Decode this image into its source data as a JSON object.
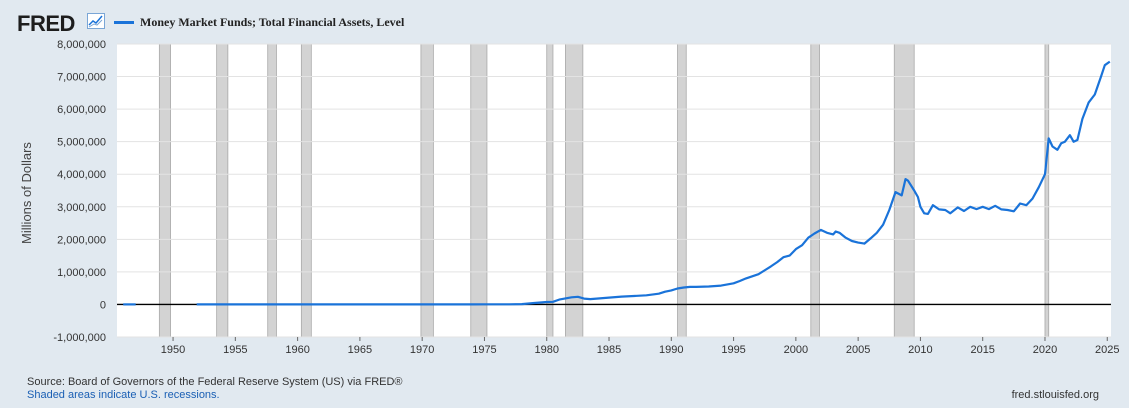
{
  "header": {
    "logo_text": "FRED",
    "logo_icon": "line-chart-icon"
  },
  "colors": {
    "series": "#1a73d9",
    "recession": "#d3d3d3",
    "plot_bg": "#ffffff",
    "page_bg": "#e1e9f0"
  },
  "chart_data": {
    "type": "line",
    "title": "Money Market Funds; Total Financial Assets, Level",
    "xlabel": "",
    "ylabel": "Millions of Dollars",
    "xlim": [
      1945.5,
      2025.3
    ],
    "ylim": [
      -1000000,
      8000000
    ],
    "y_ticks": [
      -1000000,
      0,
      1000000,
      2000000,
      3000000,
      4000000,
      5000000,
      6000000,
      7000000,
      8000000
    ],
    "y_tick_labels": [
      "-1,000,000",
      "0",
      "1,000,000",
      "2,000,000",
      "3,000,000",
      "4,000,000",
      "5,000,000",
      "6,000,000",
      "7,000,000",
      "8,000,000"
    ],
    "x_ticks": [
      1950,
      1955,
      1960,
      1965,
      1970,
      1975,
      1980,
      1985,
      1990,
      1995,
      2000,
      2005,
      2010,
      2015,
      2020,
      2025
    ],
    "x_tick_labels": [
      "1950",
      "1955",
      "1960",
      "1965",
      "1970",
      "1975",
      "1980",
      "1985",
      "1990",
      "1995",
      "2000",
      "2005",
      "2010",
      "2015",
      "2020",
      "2025"
    ],
    "grid": true,
    "recessions": [
      [
        1948.9,
        1949.8
      ],
      [
        1953.5,
        1954.4
      ],
      [
        1957.6,
        1958.3
      ],
      [
        1960.3,
        1961.1
      ],
      [
        1969.9,
        1970.9
      ],
      [
        1973.9,
        1975.2
      ],
      [
        1980.0,
        1980.5
      ],
      [
        1981.5,
        1982.9
      ],
      [
        1990.5,
        1991.2
      ],
      [
        2001.2,
        2001.9
      ],
      [
        2007.9,
        2009.5
      ],
      [
        2020.0,
        2020.3
      ]
    ],
    "series": [
      {
        "name": "Money Market Funds; Total Financial Assets, Level",
        "segments": [
          [
            [
              1946.0,
              0
            ],
            [
              1947.0,
              0
            ]
          ],
          [
            [
              1951.9,
              0
            ],
            [
              1960,
              0
            ],
            [
              1970,
              0
            ],
            [
              1974,
              2000
            ],
            [
              1975,
              3500
            ],
            [
              1976,
              3700
            ],
            [
              1977,
              3900
            ],
            [
              1978,
              11000
            ],
            [
              1979,
              45000
            ],
            [
              1980,
              76000
            ],
            [
              1980.5,
              80000
            ],
            [
              1981,
              150000
            ],
            [
              1981.5,
              185000
            ],
            [
              1982,
              220000
            ],
            [
              1982.5,
              235000
            ],
            [
              1983,
              180000
            ],
            [
              1983.5,
              165000
            ],
            [
              1984,
              180000
            ],
            [
              1985,
              210000
            ],
            [
              1986,
              240000
            ],
            [
              1987,
              260000
            ],
            [
              1988,
              280000
            ],
            [
              1989,
              330000
            ],
            [
              1989.5,
              390000
            ],
            [
              1990,
              430000
            ],
            [
              1990.5,
              490000
            ],
            [
              1991,
              520000
            ],
            [
              1991.5,
              540000
            ],
            [
              1992,
              540000
            ],
            [
              1993,
              550000
            ],
            [
              1994,
              580000
            ],
            [
              1995,
              650000
            ],
            [
              1995.5,
              720000
            ],
            [
              1996,
              800000
            ],
            [
              1997,
              930000
            ],
            [
              1998,
              1170000
            ],
            [
              1998.5,
              1300000
            ],
            [
              1999,
              1450000
            ],
            [
              1999.5,
              1500000
            ],
            [
              2000,
              1700000
            ],
            [
              2000.5,
              1820000
            ],
            [
              2001,
              2050000
            ],
            [
              2001.5,
              2180000
            ],
            [
              2002,
              2290000
            ],
            [
              2002.5,
              2200000
            ],
            [
              2003,
              2150000
            ],
            [
              2003.2,
              2240000
            ],
            [
              2003.5,
              2200000
            ],
            [
              2004,
              2050000
            ],
            [
              2004.5,
              1950000
            ],
            [
              2005,
              1900000
            ],
            [
              2005.5,
              1870000
            ],
            [
              2006,
              2030000
            ],
            [
              2006.5,
              2200000
            ],
            [
              2007,
              2450000
            ],
            [
              2007.5,
              2900000
            ],
            [
              2008,
              3450000
            ],
            [
              2008.5,
              3350000
            ],
            [
              2008.8,
              3850000
            ],
            [
              2009,
              3800000
            ],
            [
              2009.5,
              3500000
            ],
            [
              2009.8,
              3300000
            ],
            [
              2010,
              3000000
            ],
            [
              2010.3,
              2800000
            ],
            [
              2010.6,
              2780000
            ],
            [
              2011,
              3050000
            ],
            [
              2011.5,
              2920000
            ],
            [
              2012,
              2900000
            ],
            [
              2012.4,
              2800000
            ],
            [
              2013,
              2980000
            ],
            [
              2013.5,
              2870000
            ],
            [
              2014,
              3000000
            ],
            [
              2014.5,
              2930000
            ],
            [
              2015,
              3000000
            ],
            [
              2015.5,
              2930000
            ],
            [
              2016,
              3030000
            ],
            [
              2016.5,
              2920000
            ],
            [
              2017,
              2900000
            ],
            [
              2017.5,
              2860000
            ],
            [
              2018,
              3100000
            ],
            [
              2018.5,
              3050000
            ],
            [
              2019,
              3250000
            ],
            [
              2019.5,
              3600000
            ],
            [
              2020,
              4000000
            ],
            [
              2020.3,
              5100000
            ],
            [
              2020.6,
              4850000
            ],
            [
              2021,
              4750000
            ],
            [
              2021.3,
              4950000
            ],
            [
              2021.6,
              5000000
            ],
            [
              2022,
              5200000
            ],
            [
              2022.3,
              5000000
            ],
            [
              2022.6,
              5050000
            ],
            [
              2023,
              5700000
            ],
            [
              2023.5,
              6200000
            ],
            [
              2024,
              6450000
            ],
            [
              2024.5,
              7000000
            ],
            [
              2024.8,
              7350000
            ],
            [
              2025.2,
              7460000
            ]
          ]
        ]
      }
    ]
  },
  "footer": {
    "source": "Source: Board of Governors of the Federal Reserve System (US) via FRED®",
    "note": "Shaded areas indicate U.S. recessions.",
    "url": "fred.stlouisfed.org"
  }
}
